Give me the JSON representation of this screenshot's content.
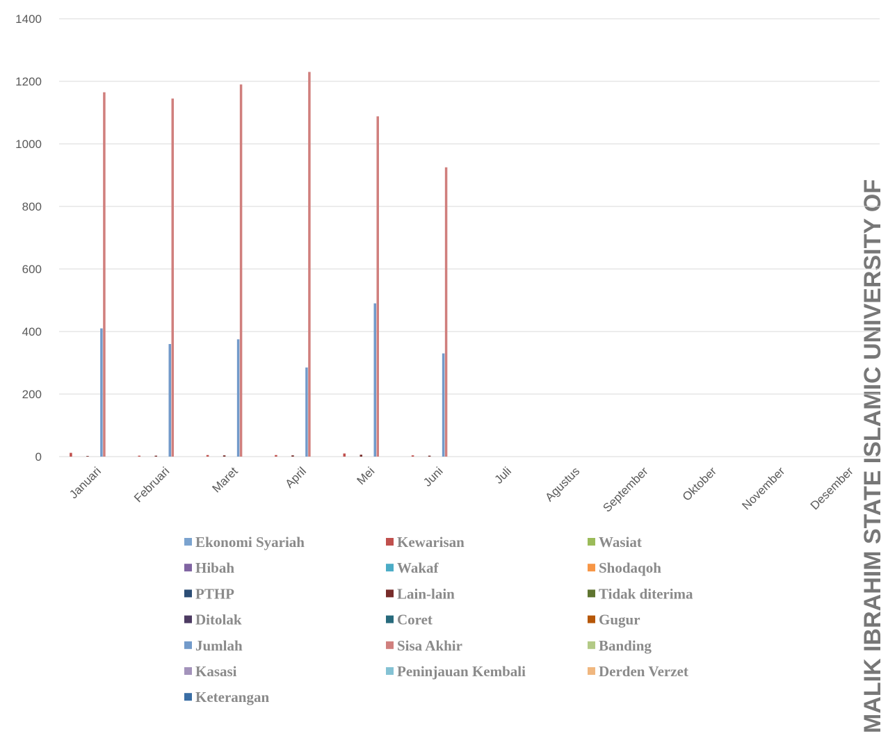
{
  "chart_data": {
    "type": "bar",
    "side_text": "MALIK IBRAHIM STATE ISLAMIC UNIVERSITY OF",
    "categories": [
      "Januari",
      "Februari",
      "Maret",
      "April",
      "Mei",
      "Juni",
      "Juli",
      "Agustus",
      "September",
      "Oktober",
      "November",
      "Desember"
    ],
    "ylim": [
      0,
      1400
    ],
    "yticks": [
      0,
      200,
      400,
      600,
      800,
      1000,
      1200,
      1400
    ],
    "grid": true,
    "legend": "bottom",
    "series": [
      {
        "name": "Ekonomi Syariah",
        "color": "#7ba3cf",
        "values": [
          0,
          0,
          0,
          0,
          0,
          0,
          null,
          null,
          null,
          null,
          null,
          null
        ]
      },
      {
        "name": "Kewarisan",
        "color": "#c0504d",
        "values": [
          12,
          3,
          5,
          5,
          10,
          4,
          null,
          null,
          null,
          null,
          null,
          null
        ]
      },
      {
        "name": "Wasiat",
        "color": "#9bbb59",
        "values": [
          0,
          0,
          0,
          0,
          0,
          0,
          null,
          null,
          null,
          null,
          null,
          null
        ]
      },
      {
        "name": "Hibah",
        "color": "#8064a2",
        "values": [
          0,
          0,
          0,
          0,
          0,
          0,
          null,
          null,
          null,
          null,
          null,
          null
        ]
      },
      {
        "name": "Wakaf",
        "color": "#4bacc6",
        "values": [
          0,
          0,
          0,
          0,
          0,
          0,
          null,
          null,
          null,
          null,
          null,
          null
        ]
      },
      {
        "name": "Shodaqoh",
        "color": "#f79646",
        "values": [
          0,
          0,
          0,
          0,
          0,
          0,
          null,
          null,
          null,
          null,
          null,
          null
        ]
      },
      {
        "name": "PTHP",
        "color": "#2c4d75",
        "values": [
          0,
          0,
          0,
          0,
          0,
          0,
          null,
          null,
          null,
          null,
          null,
          null
        ]
      },
      {
        "name": "Lain-lain",
        "color": "#772c2a",
        "values": [
          2,
          3,
          4,
          4,
          6,
          3,
          null,
          null,
          null,
          null,
          null,
          null
        ]
      },
      {
        "name": "Tidak diterima",
        "color": "#5f7530",
        "values": [
          0,
          0,
          0,
          0,
          0,
          0,
          null,
          null,
          null,
          null,
          null,
          null
        ]
      },
      {
        "name": "Ditolak",
        "color": "#4d3b62",
        "values": [
          0,
          0,
          0,
          0,
          0,
          0,
          null,
          null,
          null,
          null,
          null,
          null
        ]
      },
      {
        "name": "Coret",
        "color": "#276a7c",
        "values": [
          0,
          0,
          0,
          0,
          0,
          0,
          null,
          null,
          null,
          null,
          null,
          null
        ]
      },
      {
        "name": "Gugur",
        "color": "#b65708",
        "values": [
          0,
          0,
          0,
          0,
          0,
          0,
          null,
          null,
          null,
          null,
          null,
          null
        ]
      },
      {
        "name": "Jumlah",
        "color": "#729aca",
        "values": [
          410,
          360,
          375,
          285,
          490,
          330,
          null,
          null,
          null,
          null,
          null,
          null
        ]
      },
      {
        "name": "Sisa Akhir",
        "color": "#d07f7d",
        "values": [
          1165,
          1145,
          1190,
          1230,
          1088,
          925,
          null,
          null,
          null,
          null,
          null,
          null
        ]
      },
      {
        "name": "Banding",
        "color": "#b3ca86",
        "values": [
          0,
          0,
          0,
          0,
          0,
          0,
          null,
          null,
          null,
          null,
          null,
          null
        ]
      },
      {
        "name": "Kasasi",
        "color": "#a393bb",
        "values": [
          0,
          0,
          0,
          0,
          0,
          0,
          null,
          null,
          null,
          null,
          null,
          null
        ]
      },
      {
        "name": "Peninjauan Kembali",
        "color": "#84c2d4",
        "values": [
          0,
          0,
          0,
          0,
          0,
          0,
          null,
          null,
          null,
          null,
          null,
          null
        ]
      },
      {
        "name": "Derden Verzet",
        "color": "#f0b77f",
        "values": [
          0,
          0,
          0,
          0,
          0,
          0,
          null,
          null,
          null,
          null,
          null,
          null
        ]
      },
      {
        "name": "Keterangan",
        "color": "#3a6ea5",
        "values": [
          0,
          0,
          0,
          0,
          0,
          0,
          null,
          null,
          null,
          null,
          null,
          null
        ]
      }
    ]
  }
}
